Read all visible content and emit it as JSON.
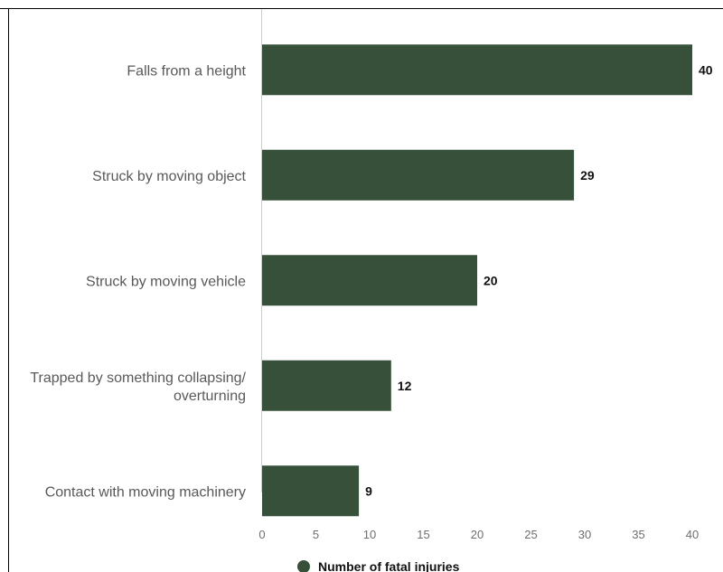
{
  "chart_data": {
    "type": "bar",
    "orientation": "horizontal",
    "categories": [
      "Falls from a height",
      "Struck by moving object",
      "Struck by moving vehicle",
      "Trapped by something collapsing/ overturning",
      "Contact with moving machinery"
    ],
    "category_lines": [
      [
        "Falls from a height"
      ],
      [
        "Struck by moving object"
      ],
      [
        "Struck by moving vehicle"
      ],
      [
        "Trapped by something collapsing/",
        "overturning"
      ],
      [
        "Contact with moving machinery"
      ]
    ],
    "series": [
      {
        "name": "Number of fatal injuries",
        "values": [
          40,
          29,
          20,
          12,
          9
        ],
        "color": "#36503a"
      }
    ],
    "data_labels": [
      "40",
      "29",
      "20",
      "12",
      "9"
    ],
    "xlim": [
      0,
      40
    ],
    "xticks": [
      0,
      5,
      10,
      15,
      20,
      25,
      30,
      35,
      40
    ],
    "grid": false,
    "legend_position": "bottom"
  },
  "colors": {
    "bar": "#36503a",
    "axis_line": "#c8cde6",
    "frame": "#000000"
  }
}
